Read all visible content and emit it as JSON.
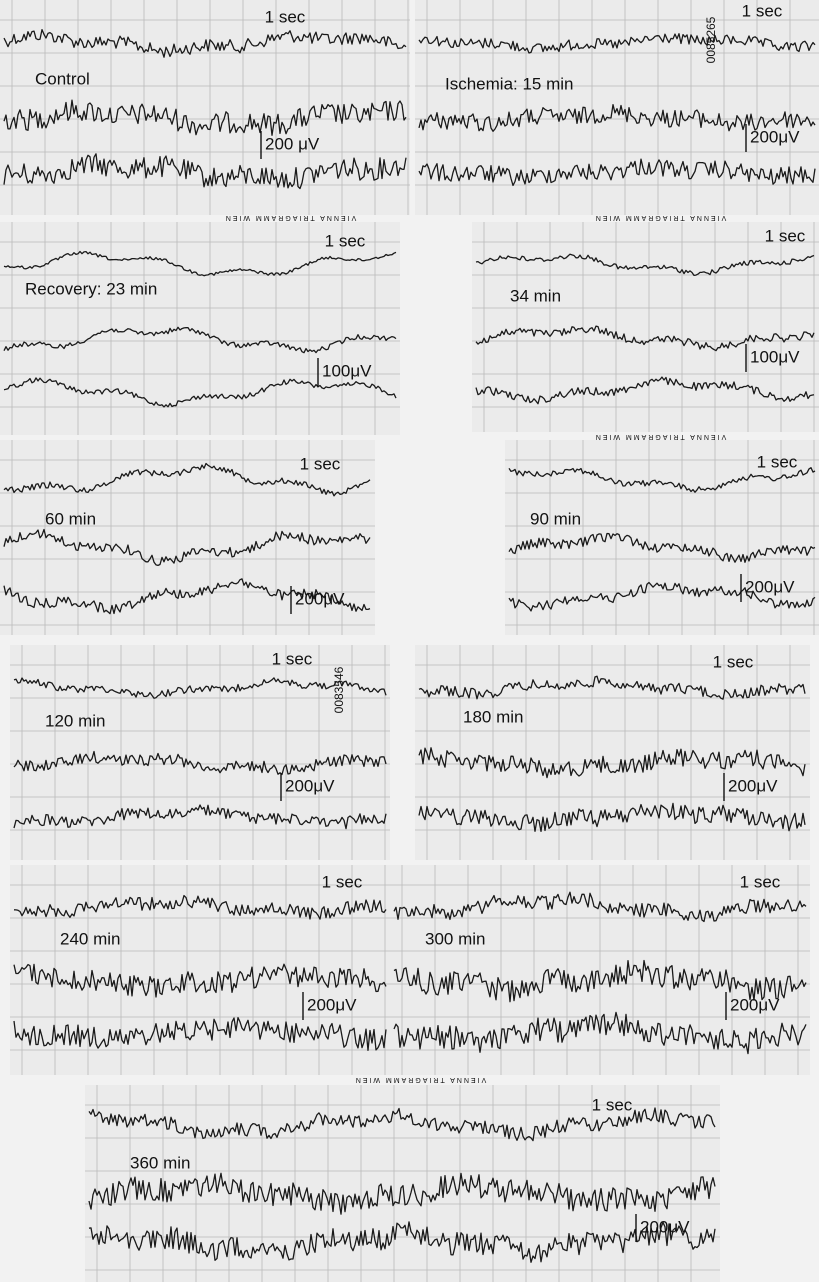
{
  "panels": [
    {
      "label": "Control",
      "time_label": "1 sec",
      "scale_label": "200 μV"
    },
    {
      "label": "Ischemia: 15 min",
      "time_label": "1 sec",
      "scale_label": "200μV"
    },
    {
      "label": "Recovery: 23 min",
      "time_label": "1 sec",
      "scale_label": "100μV"
    },
    {
      "label": "34 min",
      "time_label": "1 sec",
      "scale_label": "100μV"
    },
    {
      "label": "60 min",
      "time_label": "1 sec",
      "scale_label": "200μV"
    },
    {
      "label": "90 min",
      "time_label": "1 sec",
      "scale_label": "200μV"
    },
    {
      "label": "120 min",
      "time_label": "1 sec",
      "scale_label": "200μV"
    },
    {
      "label": "180 min",
      "time_label": "1 sec",
      "scale_label": "200μV"
    },
    {
      "label": "240 min",
      "time_label": "1 sec",
      "scale_label": "200μV"
    },
    {
      "label": "300 min",
      "time_label": "1 sec",
      "scale_label": "200μV"
    },
    {
      "label": "360 min",
      "time_label": "1 sec",
      "scale_label": "200μV"
    }
  ],
  "stamps": [
    "VIENNA TRIAGRAMM WIEN"
  ],
  "ids": [
    "0085265",
    "0083546"
  ]
}
